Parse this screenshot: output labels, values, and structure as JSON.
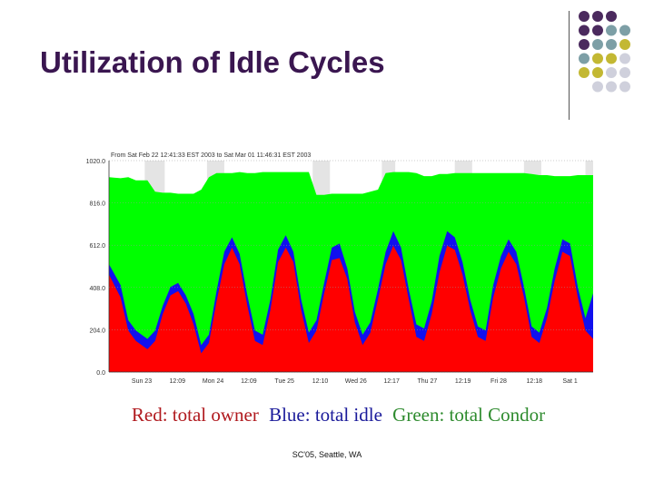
{
  "slide": {
    "title": "Utilization of Idle Cycles",
    "footer": "SC'05, Seattle, WA"
  },
  "legend_caption": [
    {
      "text": "Red: total owner",
      "color": "#b0191e"
    },
    {
      "text": "Blue: total idle",
      "color": "#1a1a9a"
    },
    {
      "text": "Green: total Condor",
      "color": "#2e8b2e"
    }
  ],
  "decor_colors": [
    "#4b2a5e",
    "#7d9fa6",
    "#c3b833",
    "#cfd0dc"
  ],
  "chart_data": {
    "type": "area",
    "title": "From Sat Feb 22 12:41:33 EST 2003 to Sat Mar 01 11:46:31 EST 2003",
    "y_ticks": [
      "1020.0",
      "816.0",
      "612.0",
      "408.0",
      "204.0",
      "0.0"
    ],
    "ylim": [
      0,
      1020
    ],
    "x_ticks": [
      "Sun 23",
      "12:09",
      "Mon 24",
      "12:09",
      "Tue 25",
      "12:10",
      "Wed 26",
      "12:17",
      "Thu 27",
      "12:19",
      "Fri 28",
      "12:18",
      "Sat 1"
    ],
    "series_colors": {
      "owner": "#ff0000",
      "idle": "#1010ee",
      "condor": "#00ff00"
    },
    "x": [
      0,
      0.3,
      0.5,
      0.7,
      1.0,
      1.2,
      1.4,
      1.6,
      1.8,
      2.0,
      2.2,
      2.4,
      2.6,
      2.8,
      3.0,
      3.2,
      3.4,
      3.6,
      3.8,
      4.0,
      4.2,
      4.4,
      4.6,
      4.8,
      5.0,
      5.2,
      5.4,
      5.6,
      5.8,
      6.0,
      6.2,
      6.4,
      6.6,
      6.8,
      7.0,
      7.2,
      7.4,
      7.6,
      7.8,
      8.0,
      8.2,
      8.4,
      8.6,
      8.8,
      9.0,
      9.2,
      9.4,
      9.6,
      9.8,
      10.0,
      10.2,
      10.4,
      10.6,
      10.8,
      11.0,
      11.2,
      11.4,
      11.6,
      11.8,
      12.0,
      12.2,
      12.4,
      12.6
    ],
    "owner": [
      470,
      360,
      200,
      150,
      110,
      150,
      280,
      370,
      390,
      330,
      230,
      90,
      140,
      340,
      520,
      600,
      520,
      320,
      150,
      130,
      300,
      530,
      600,
      530,
      300,
      140,
      200,
      380,
      540,
      550,
      450,
      240,
      130,
      190,
      350,
      520,
      610,
      540,
      350,
      170,
      150,
      280,
      480,
      610,
      590,
      470,
      300,
      170,
      150,
      360,
      500,
      580,
      520,
      360,
      170,
      140,
      260,
      440,
      580,
      560,
      360,
      200,
      160
    ],
    "idle": [
      520,
      420,
      250,
      200,
      160,
      200,
      320,
      410,
      430,
      370,
      280,
      130,
      180,
      390,
      580,
      650,
      570,
      370,
      200,
      180,
      350,
      590,
      660,
      580,
      350,
      190,
      250,
      430,
      600,
      620,
      500,
      290,
      180,
      240,
      400,
      580,
      680,
      600,
      400,
      230,
      210,
      340,
      560,
      680,
      650,
      530,
      350,
      220,
      200,
      420,
      560,
      640,
      580,
      410,
      220,
      190,
      310,
      500,
      640,
      620,
      410,
      260,
      380
    ],
    "condor": [
      940,
      935,
      940,
      925,
      925,
      870,
      865,
      865,
      860,
      860,
      860,
      880,
      940,
      960,
      960,
      960,
      965,
      960,
      960,
      965,
      965,
      965,
      965,
      965,
      965,
      965,
      855,
      855,
      860,
      860,
      860,
      860,
      860,
      870,
      880,
      960,
      965,
      965,
      965,
      960,
      945,
      945,
      955,
      955,
      960,
      960,
      960,
      960,
      960,
      960,
      960,
      960,
      960,
      960,
      955,
      950,
      950,
      945,
      945,
      945,
      950,
      950,
      950
    ]
  }
}
